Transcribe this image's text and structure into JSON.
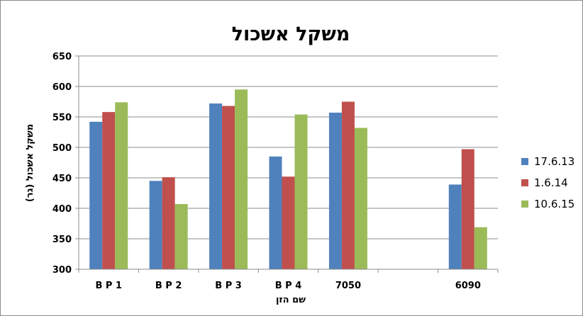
{
  "chart_data": {
    "type": "bar",
    "title": "משקל אשכול",
    "xlabel": "שם הזן",
    "ylabel": "משקל אשכול (גר)",
    "categories": [
      "B P 1",
      "B P 2",
      "B P 3",
      "B P 4",
      "7050",
      "",
      "6090"
    ],
    "series": [
      {
        "name": "17.6.13",
        "color": "#4f81bd",
        "values": [
          542,
          445,
          572,
          485,
          557,
          null,
          439
        ]
      },
      {
        "name": "1.6.14",
        "color": "#c0504d",
        "values": [
          558,
          451,
          568,
          452,
          575,
          null,
          497
        ]
      },
      {
        "name": "10.6.15",
        "color": "#9bbb59",
        "values": [
          574,
          407,
          595,
          554,
          532,
          null,
          369
        ]
      }
    ],
    "ylim": [
      300,
      650
    ],
    "yticks": [
      300,
      350,
      400,
      450,
      500,
      550,
      600,
      650
    ],
    "grid": true,
    "legend_position": "right"
  }
}
